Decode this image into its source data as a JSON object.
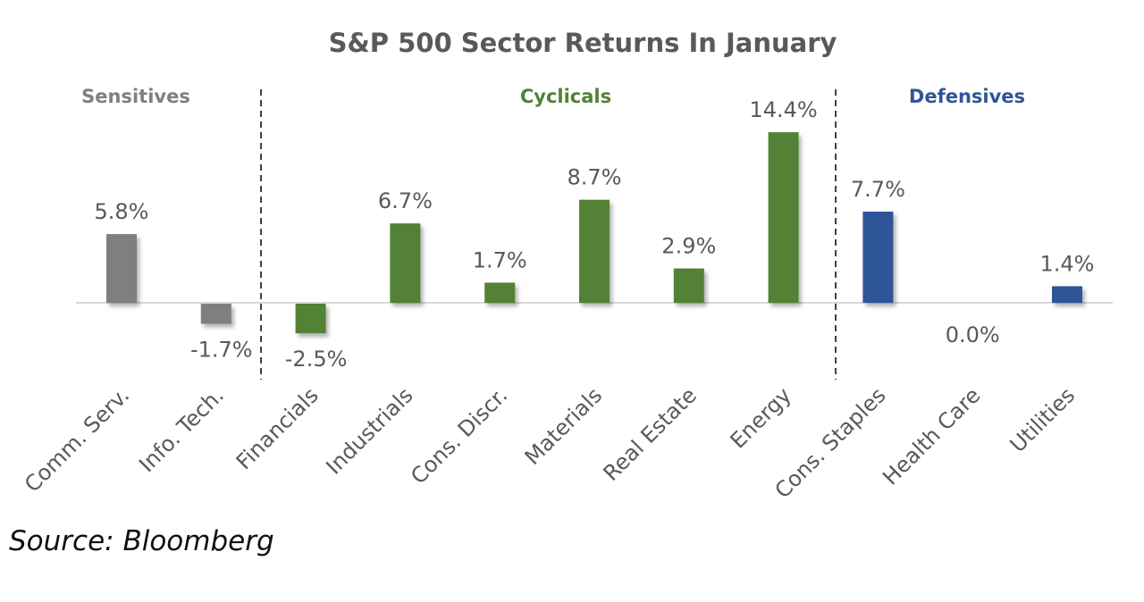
{
  "chart_data": {
    "type": "bar",
    "title": "S&P 500 Sector Returns In January",
    "categories": [
      "Comm. Serv.",
      "Info. Tech.",
      "Financials",
      "Industrials",
      "Cons. Discr.",
      "Materials",
      "Real Estate",
      "Energy",
      "Cons. Staples",
      "Health Care",
      "Utilities"
    ],
    "values": [
      5.8,
      -1.7,
      -2.5,
      6.7,
      1.7,
      8.7,
      2.9,
      14.4,
      7.7,
      0.0,
      1.4
    ],
    "data_labels": [
      "5.8%",
      "-1.7%",
      "-2.5%",
      "6.7%",
      "1.7%",
      "8.7%",
      "2.9%",
      "14.4%",
      "7.7%",
      "0.0%",
      "1.4%"
    ],
    "groups": [
      {
        "name": "Sensitives",
        "color": "#7f7f7f",
        "categories": [
          0,
          1
        ]
      },
      {
        "name": "Cyclicals",
        "color": "#538135",
        "categories": [
          2,
          3,
          4,
          5,
          6,
          7
        ]
      },
      {
        "name": "Defensives",
        "color": "#2f5597",
        "categories": [
          8,
          9,
          10
        ]
      }
    ],
    "negative_label_color": "#e02020",
    "xlabel": "",
    "ylabel": "",
    "grid": false,
    "legend": "none"
  },
  "source": "Source: Bloomberg"
}
